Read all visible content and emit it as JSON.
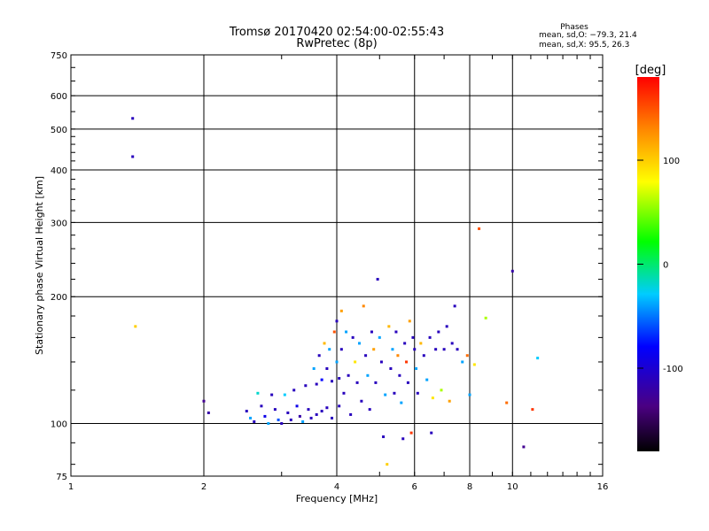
{
  "chart_data": {
    "type": "scatter",
    "title": "Tromsø 20170420 02:54:00-02:55:43",
    "subtitle": "RwPretec (8p)",
    "stats": {
      "heading": "Phases",
      "line_o": "mean, sd,O: −79.3, 21.4",
      "line_x": "mean, sd,X:  95.5, 26.3"
    },
    "xlabel": "Frequency [MHz]",
    "ylabel": "Stationary phase Virtual Height [km]",
    "x_scale": "log",
    "y_scale": "log",
    "xlim": [
      1,
      16
    ],
    "ylim": [
      75,
      750
    ],
    "xticks": [
      1,
      2,
      4,
      6,
      8,
      10,
      16
    ],
    "xtick_labels": [
      "1",
      "2",
      "4",
      "6",
      "8",
      "10",
      "16"
    ],
    "yticks": [
      75,
      100,
      200,
      300,
      400,
      500,
      600,
      750
    ],
    "ytick_labels": [
      "75",
      "100",
      "200",
      "300",
      "400",
      "500",
      "600",
      "750"
    ],
    "grid": true,
    "colorbar": {
      "label": "[deg]",
      "range": [
        -180,
        180
      ],
      "ticks": [
        100,
        0,
        -100
      ],
      "tick_labels": [
        "100",
        "0",
        "-100"
      ]
    },
    "points": [
      {
        "x": 1.38,
        "y": 530,
        "phase": -110
      },
      {
        "x": 1.38,
        "y": 430,
        "phase": -110
      },
      {
        "x": 1.4,
        "y": 170,
        "phase": 100
      },
      {
        "x": 2.0,
        "y": 113,
        "phase": -130
      },
      {
        "x": 2.05,
        "y": 106,
        "phase": -120
      },
      {
        "x": 2.5,
        "y": 107,
        "phase": -110
      },
      {
        "x": 2.55,
        "y": 103,
        "phase": -40
      },
      {
        "x": 2.6,
        "y": 101,
        "phase": -110
      },
      {
        "x": 2.65,
        "y": 118,
        "phase": -20
      },
      {
        "x": 2.7,
        "y": 110,
        "phase": -110
      },
      {
        "x": 2.75,
        "y": 104,
        "phase": -90
      },
      {
        "x": 2.8,
        "y": 100,
        "phase": -40
      },
      {
        "x": 2.85,
        "y": 117,
        "phase": -110
      },
      {
        "x": 2.9,
        "y": 108,
        "phase": -110
      },
      {
        "x": 2.95,
        "y": 102,
        "phase": -60
      },
      {
        "x": 3.0,
        "y": 100,
        "phase": -110
      },
      {
        "x": 3.05,
        "y": 117,
        "phase": -30
      },
      {
        "x": 3.1,
        "y": 106,
        "phase": -110
      },
      {
        "x": 3.15,
        "y": 102,
        "phase": -110
      },
      {
        "x": 3.2,
        "y": 120,
        "phase": -110
      },
      {
        "x": 3.25,
        "y": 110,
        "phase": -90
      },
      {
        "x": 3.3,
        "y": 104,
        "phase": -120
      },
      {
        "x": 3.35,
        "y": 101,
        "phase": -40
      },
      {
        "x": 3.4,
        "y": 123,
        "phase": -110
      },
      {
        "x": 3.45,
        "y": 108,
        "phase": -110
      },
      {
        "x": 3.5,
        "y": 103,
        "phase": -110
      },
      {
        "x": 3.55,
        "y": 135,
        "phase": -40
      },
      {
        "x": 3.6,
        "y": 124,
        "phase": -110
      },
      {
        "x": 3.6,
        "y": 105,
        "phase": -110
      },
      {
        "x": 3.65,
        "y": 145,
        "phase": -110
      },
      {
        "x": 3.7,
        "y": 127,
        "phase": -80
      },
      {
        "x": 3.7,
        "y": 107,
        "phase": -110
      },
      {
        "x": 3.75,
        "y": 155,
        "phase": 110
      },
      {
        "x": 3.8,
        "y": 135,
        "phase": -110
      },
      {
        "x": 3.8,
        "y": 109,
        "phase": -110
      },
      {
        "x": 3.85,
        "y": 150,
        "phase": -40
      },
      {
        "x": 3.9,
        "y": 126,
        "phase": -110
      },
      {
        "x": 3.9,
        "y": 103,
        "phase": -110
      },
      {
        "x": 3.95,
        "y": 165,
        "phase": 150
      },
      {
        "x": 4.0,
        "y": 175,
        "phase": -110
      },
      {
        "x": 4.0,
        "y": 140,
        "phase": -40
      },
      {
        "x": 4.05,
        "y": 128,
        "phase": -110
      },
      {
        "x": 4.05,
        "y": 110,
        "phase": -110
      },
      {
        "x": 4.1,
        "y": 185,
        "phase": 120
      },
      {
        "x": 4.1,
        "y": 150,
        "phase": -110
      },
      {
        "x": 4.15,
        "y": 118,
        "phase": -110
      },
      {
        "x": 4.2,
        "y": 165,
        "phase": -40
      },
      {
        "x": 4.25,
        "y": 130,
        "phase": -110
      },
      {
        "x": 4.3,
        "y": 105,
        "phase": -110
      },
      {
        "x": 4.35,
        "y": 160,
        "phase": -110
      },
      {
        "x": 4.4,
        "y": 140,
        "phase": 90
      },
      {
        "x": 4.45,
        "y": 125,
        "phase": -110
      },
      {
        "x": 4.5,
        "y": 155,
        "phase": -40
      },
      {
        "x": 4.55,
        "y": 113,
        "phase": -110
      },
      {
        "x": 4.6,
        "y": 190,
        "phase": 130
      },
      {
        "x": 4.65,
        "y": 145,
        "phase": -110
      },
      {
        "x": 4.7,
        "y": 130,
        "phase": -40
      },
      {
        "x": 4.75,
        "y": 108,
        "phase": -110
      },
      {
        "x": 4.8,
        "y": 165,
        "phase": -110
      },
      {
        "x": 4.85,
        "y": 150,
        "phase": 120
      },
      {
        "x": 4.9,
        "y": 125,
        "phase": -110
      },
      {
        "x": 4.95,
        "y": 220,
        "phase": -110
      },
      {
        "x": 5.0,
        "y": 160,
        "phase": -40
      },
      {
        "x": 5.05,
        "y": 140,
        "phase": -110
      },
      {
        "x": 5.1,
        "y": 93,
        "phase": -110
      },
      {
        "x": 5.15,
        "y": 117,
        "phase": -40
      },
      {
        "x": 5.2,
        "y": 80,
        "phase": 100
      },
      {
        "x": 5.25,
        "y": 170,
        "phase": 110
      },
      {
        "x": 5.3,
        "y": 135,
        "phase": -110
      },
      {
        "x": 5.35,
        "y": 150,
        "phase": -40
      },
      {
        "x": 5.4,
        "y": 118,
        "phase": -110
      },
      {
        "x": 5.45,
        "y": 165,
        "phase": -110
      },
      {
        "x": 5.5,
        "y": 145,
        "phase": 130
      },
      {
        "x": 5.55,
        "y": 130,
        "phase": -110
      },
      {
        "x": 5.6,
        "y": 112,
        "phase": -40
      },
      {
        "x": 5.65,
        "y": 92,
        "phase": -110
      },
      {
        "x": 5.7,
        "y": 155,
        "phase": -110
      },
      {
        "x": 5.75,
        "y": 140,
        "phase": 160
      },
      {
        "x": 5.8,
        "y": 125,
        "phase": -110
      },
      {
        "x": 5.85,
        "y": 175,
        "phase": 120
      },
      {
        "x": 5.9,
        "y": 95,
        "phase": 160
      },
      {
        "x": 5.95,
        "y": 160,
        "phase": -110
      },
      {
        "x": 6.0,
        "y": 150,
        "phase": -110
      },
      {
        "x": 6.05,
        "y": 135,
        "phase": -40
      },
      {
        "x": 6.1,
        "y": 118,
        "phase": -110
      },
      {
        "x": 6.2,
        "y": 155,
        "phase": 110
      },
      {
        "x": 6.3,
        "y": 145,
        "phase": -110
      },
      {
        "x": 6.4,
        "y": 127,
        "phase": -40
      },
      {
        "x": 6.5,
        "y": 160,
        "phase": -110
      },
      {
        "x": 6.55,
        "y": 95,
        "phase": -110
      },
      {
        "x": 6.6,
        "y": 115,
        "phase": 90
      },
      {
        "x": 6.7,
        "y": 150,
        "phase": -110
      },
      {
        "x": 6.8,
        "y": 165,
        "phase": -110
      },
      {
        "x": 6.9,
        "y": 120,
        "phase": 60
      },
      {
        "x": 7.0,
        "y": 150,
        "phase": -110
      },
      {
        "x": 7.1,
        "y": 170,
        "phase": -110
      },
      {
        "x": 7.2,
        "y": 113,
        "phase": 120
      },
      {
        "x": 7.3,
        "y": 155,
        "phase": -110
      },
      {
        "x": 7.4,
        "y": 190,
        "phase": -110
      },
      {
        "x": 7.5,
        "y": 150,
        "phase": -110
      },
      {
        "x": 7.7,
        "y": 140,
        "phase": -40
      },
      {
        "x": 7.9,
        "y": 145,
        "phase": 140
      },
      {
        "x": 8.0,
        "y": 117,
        "phase": -40
      },
      {
        "x": 8.2,
        "y": 138,
        "phase": 90
      },
      {
        "x": 8.4,
        "y": 290,
        "phase": 150
      },
      {
        "x": 8.7,
        "y": 178,
        "phase": 60
      },
      {
        "x": 9.7,
        "y": 112,
        "phase": 140
      },
      {
        "x": 10.0,
        "y": 230,
        "phase": -120
      },
      {
        "x": 10.6,
        "y": 88,
        "phase": -130
      },
      {
        "x": 11.1,
        "y": 108,
        "phase": 160
      },
      {
        "x": 11.4,
        "y": 143,
        "phase": -30
      }
    ]
  }
}
